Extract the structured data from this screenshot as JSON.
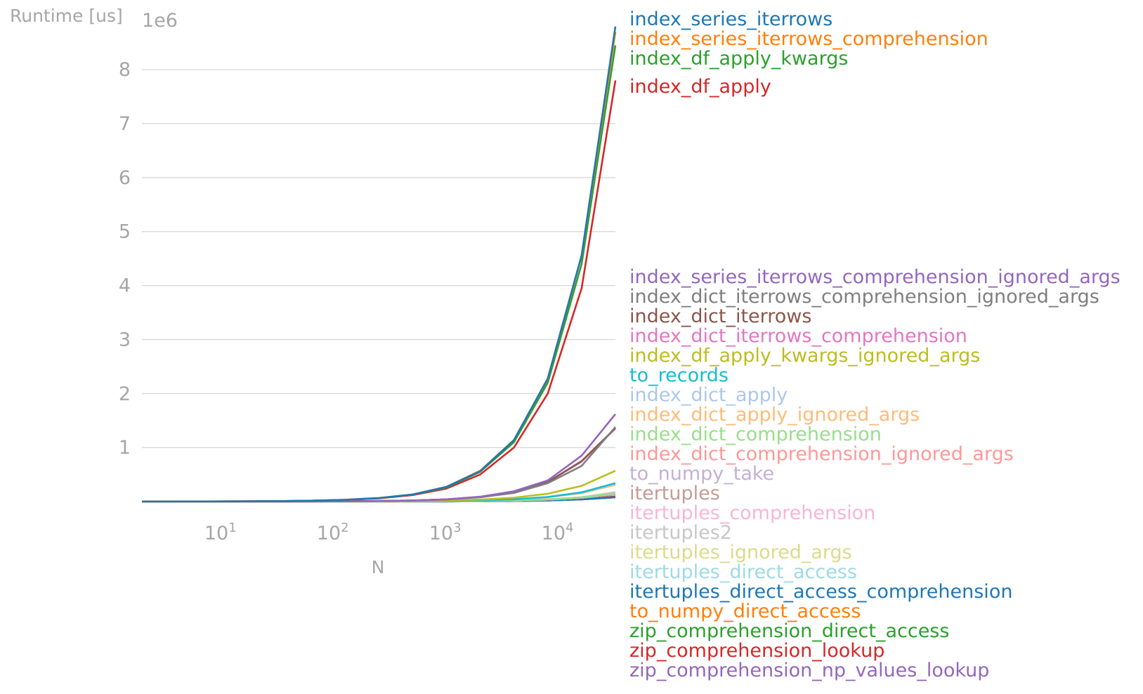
{
  "chart_data": {
    "type": "line",
    "title": "",
    "xlabel": "N",
    "ylabel": "Runtime [us]",
    "y_offset_text": "1e6",
    "x_scale": "log",
    "xlim": [
      2,
      32768
    ],
    "ylim": [
      0,
      8.9
    ],
    "y_ticks": [
      1,
      2,
      3,
      4,
      5,
      6,
      7,
      8
    ],
    "y_tick_labels": [
      "1",
      "2",
      "3",
      "4",
      "5",
      "6",
      "7",
      "8"
    ],
    "x_ticks": [
      10,
      100,
      1000,
      10000
    ],
    "x_tick_bases": [
      "10",
      "10",
      "10",
      "10"
    ],
    "x_tick_exps": [
      "1",
      "2",
      "3",
      "4"
    ],
    "grid": "horizontal",
    "legend_placement": "right",
    "x": [
      2,
      4,
      8,
      16,
      32,
      64,
      128,
      256,
      512,
      1024,
      2048,
      4096,
      8192,
      16384,
      32768
    ],
    "series": [
      {
        "name": "index_series_iterrows",
        "color": "#1f77b4",
        "values": [
          0.0006,
          0.0011,
          0.0021,
          0.0041,
          0.008,
          0.016,
          0.032,
          0.065,
          0.13,
          0.27,
          0.56,
          1.14,
          2.28,
          4.56,
          8.8
        ]
      },
      {
        "name": "index_series_iterrows_comprehension",
        "color": "#ff7f0e",
        "values": [
          0.0006,
          0.0011,
          0.0021,
          0.0041,
          0.008,
          0.016,
          0.032,
          0.065,
          0.13,
          0.27,
          0.57,
          1.14,
          2.27,
          4.55,
          8.7
        ]
      },
      {
        "name": "index_df_apply_kwargs",
        "color": "#2ca02c",
        "values": [
          0.0006,
          0.0011,
          0.0021,
          0.004,
          0.008,
          0.016,
          0.031,
          0.063,
          0.13,
          0.26,
          0.55,
          1.1,
          2.2,
          4.4,
          8.45
        ]
      },
      {
        "name": "index_df_apply",
        "color": "#d62728",
        "values": [
          0.0006,
          0.001,
          0.002,
          0.0038,
          0.0075,
          0.015,
          0.029,
          0.058,
          0.12,
          0.24,
          0.5,
          1.0,
          2.0,
          3.95,
          7.8
        ]
      },
      {
        "name": "index_series_iterrows_comprehension_ignored_args",
        "color": "#9467bd",
        "values": [
          0.0001,
          0.0002,
          0.0004,
          0.0007,
          0.0013,
          0.0025,
          0.005,
          0.01,
          0.02,
          0.04,
          0.09,
          0.19,
          0.39,
          0.85,
          1.62
        ]
      },
      {
        "name": "index_dict_iterrows_comprehension_ignored_args",
        "color": "#7f7f7f",
        "values": [
          0.0001,
          0.0002,
          0.0004,
          0.0007,
          0.0013,
          0.0025,
          0.005,
          0.01,
          0.02,
          0.04,
          0.08,
          0.16,
          0.34,
          0.66,
          1.38
        ]
      },
      {
        "name": "index_dict_iterrows",
        "color": "#8c564b",
        "values": [
          0.0001,
          0.0002,
          0.0004,
          0.0007,
          0.0013,
          0.0025,
          0.005,
          0.01,
          0.02,
          0.04,
          0.085,
          0.17,
          0.36,
          0.75,
          1.36
        ]
      },
      {
        "name": "index_dict_iterrows_comprehension",
        "color": "#e377c2",
        "values": [
          0.0001,
          0.0002,
          0.0004,
          0.0007,
          0.0013,
          0.0025,
          0.005,
          0.01,
          0.02,
          0.04,
          0.085,
          0.17,
          0.36,
          0.74,
          1.35
        ]
      },
      {
        "name": "index_df_apply_kwargs_ignored_args",
        "color": "#bcbd22",
        "values": [
          4e-05,
          8e-05,
          0.00015,
          0.0003,
          0.0006,
          0.0011,
          0.0022,
          0.0045,
          0.009,
          0.018,
          0.036,
          0.072,
          0.145,
          0.29,
          0.57
        ]
      },
      {
        "name": "to_records",
        "color": "#17becf",
        "values": [
          2e-05,
          4e-05,
          8e-05,
          0.00015,
          0.0003,
          0.0006,
          0.0012,
          0.0025,
          0.005,
          0.01,
          0.021,
          0.042,
          0.085,
          0.17,
          0.34
        ]
      },
      {
        "name": "index_dict_apply",
        "color": "#aec7e8",
        "values": [
          2e-05,
          4e-05,
          8e-05,
          0.00015,
          0.0003,
          0.0006,
          0.0012,
          0.0024,
          0.005,
          0.01,
          0.02,
          0.041,
          0.083,
          0.165,
          0.33
        ]
      },
      {
        "name": "index_dict_apply_ignored_args",
        "color": "#ffbb78",
        "values": [
          2e-05,
          4e-05,
          8e-05,
          0.00015,
          0.0003,
          0.0006,
          0.0012,
          0.0023,
          0.0047,
          0.0095,
          0.019,
          0.039,
          0.078,
          0.155,
          0.31
        ]
      },
      {
        "name": "index_dict_comprehension",
        "color": "#98df8a",
        "values": [
          1e-05,
          2e-05,
          4e-05,
          8e-05,
          0.00015,
          0.0003,
          0.0006,
          0.0012,
          0.0025,
          0.005,
          0.01,
          0.02,
          0.04,
          0.08,
          0.16
        ]
      },
      {
        "name": "index_dict_comprehension_ignored_args",
        "color": "#ff9896",
        "values": [
          1e-05,
          2e-05,
          4e-05,
          8e-05,
          0.00015,
          0.0003,
          0.0006,
          0.0012,
          0.0025,
          0.005,
          0.01,
          0.02,
          0.04,
          0.08,
          0.17
        ]
      },
      {
        "name": "to_numpy_take",
        "color": "#c5b0d5",
        "values": [
          1e-05,
          2e-05,
          4e-05,
          7e-05,
          0.00014,
          0.0003,
          0.0006,
          0.0011,
          0.0022,
          0.0045,
          0.009,
          0.018,
          0.036,
          0.072,
          0.14
        ]
      },
      {
        "name": "itertuples",
        "color": "#c49c94",
        "values": [
          1e-05,
          2e-05,
          4e-05,
          7e-05,
          0.00014,
          0.0003,
          0.0006,
          0.0011,
          0.0022,
          0.0045,
          0.009,
          0.018,
          0.036,
          0.07,
          0.13
        ]
      },
      {
        "name": "itertuples_comprehension",
        "color": "#f7b6d2",
        "values": [
          1e-05,
          2e-05,
          4e-05,
          7e-05,
          0.00014,
          0.0003,
          0.0006,
          0.0011,
          0.0022,
          0.0045,
          0.009,
          0.018,
          0.036,
          0.07,
          0.13
        ]
      },
      {
        "name": "itertuples2",
        "color": "#c7c7c7",
        "values": [
          1e-05,
          2e-05,
          4e-05,
          7e-05,
          0.00014,
          0.0003,
          0.0006,
          0.0011,
          0.0022,
          0.0045,
          0.009,
          0.018,
          0.036,
          0.07,
          0.14
        ]
      },
      {
        "name": "itertuples_ignored_args",
        "color": "#dbdb8d",
        "values": [
          1e-05,
          2e-05,
          4e-05,
          7e-05,
          0.00014,
          0.0003,
          0.0006,
          0.0011,
          0.0022,
          0.0045,
          0.009,
          0.018,
          0.036,
          0.07,
          0.13
        ]
      },
      {
        "name": "itertuples_direct_access",
        "color": "#9edae5",
        "values": [
          1e-05,
          2e-05,
          4e-05,
          7e-05,
          0.00014,
          0.0003,
          0.0006,
          0.0011,
          0.0022,
          0.0045,
          0.009,
          0.018,
          0.036,
          0.07,
          0.13
        ]
      },
      {
        "name": "itertuples_direct_access_comprehension",
        "color": "#1f77b4",
        "values": [
          5e-06,
          1e-05,
          2e-05,
          4e-05,
          8e-05,
          0.00015,
          0.0003,
          0.0006,
          0.0012,
          0.0024,
          0.005,
          0.01,
          0.02,
          0.04,
          0.08
        ]
      },
      {
        "name": "to_numpy_direct_access",
        "color": "#ff7f0e",
        "values": [
          5e-06,
          1e-05,
          2e-05,
          4e-05,
          8e-05,
          0.00015,
          0.0003,
          0.0006,
          0.0012,
          0.0024,
          0.005,
          0.01,
          0.02,
          0.04,
          0.08
        ]
      },
      {
        "name": "zip_comprehension_direct_access",
        "color": "#2ca02c",
        "values": [
          5e-06,
          1e-05,
          2e-05,
          4e-05,
          8e-05,
          0.00015,
          0.0003,
          0.0006,
          0.0012,
          0.0024,
          0.005,
          0.01,
          0.02,
          0.04,
          0.08
        ]
      },
      {
        "name": "zip_comprehension_lookup",
        "color": "#d62728",
        "values": [
          5e-06,
          1e-05,
          2e-05,
          4e-05,
          8e-05,
          0.00015,
          0.0003,
          0.0006,
          0.0012,
          0.0024,
          0.005,
          0.01,
          0.02,
          0.045,
          0.09
        ]
      },
      {
        "name": "zip_comprehension_np_values_lookup",
        "color": "#9467bd",
        "values": [
          5e-06,
          1e-05,
          2e-05,
          4e-05,
          8e-05,
          0.00015,
          0.0003,
          0.0006,
          0.0012,
          0.0024,
          0.005,
          0.01,
          0.02,
          0.045,
          0.09
        ]
      }
    ]
  }
}
